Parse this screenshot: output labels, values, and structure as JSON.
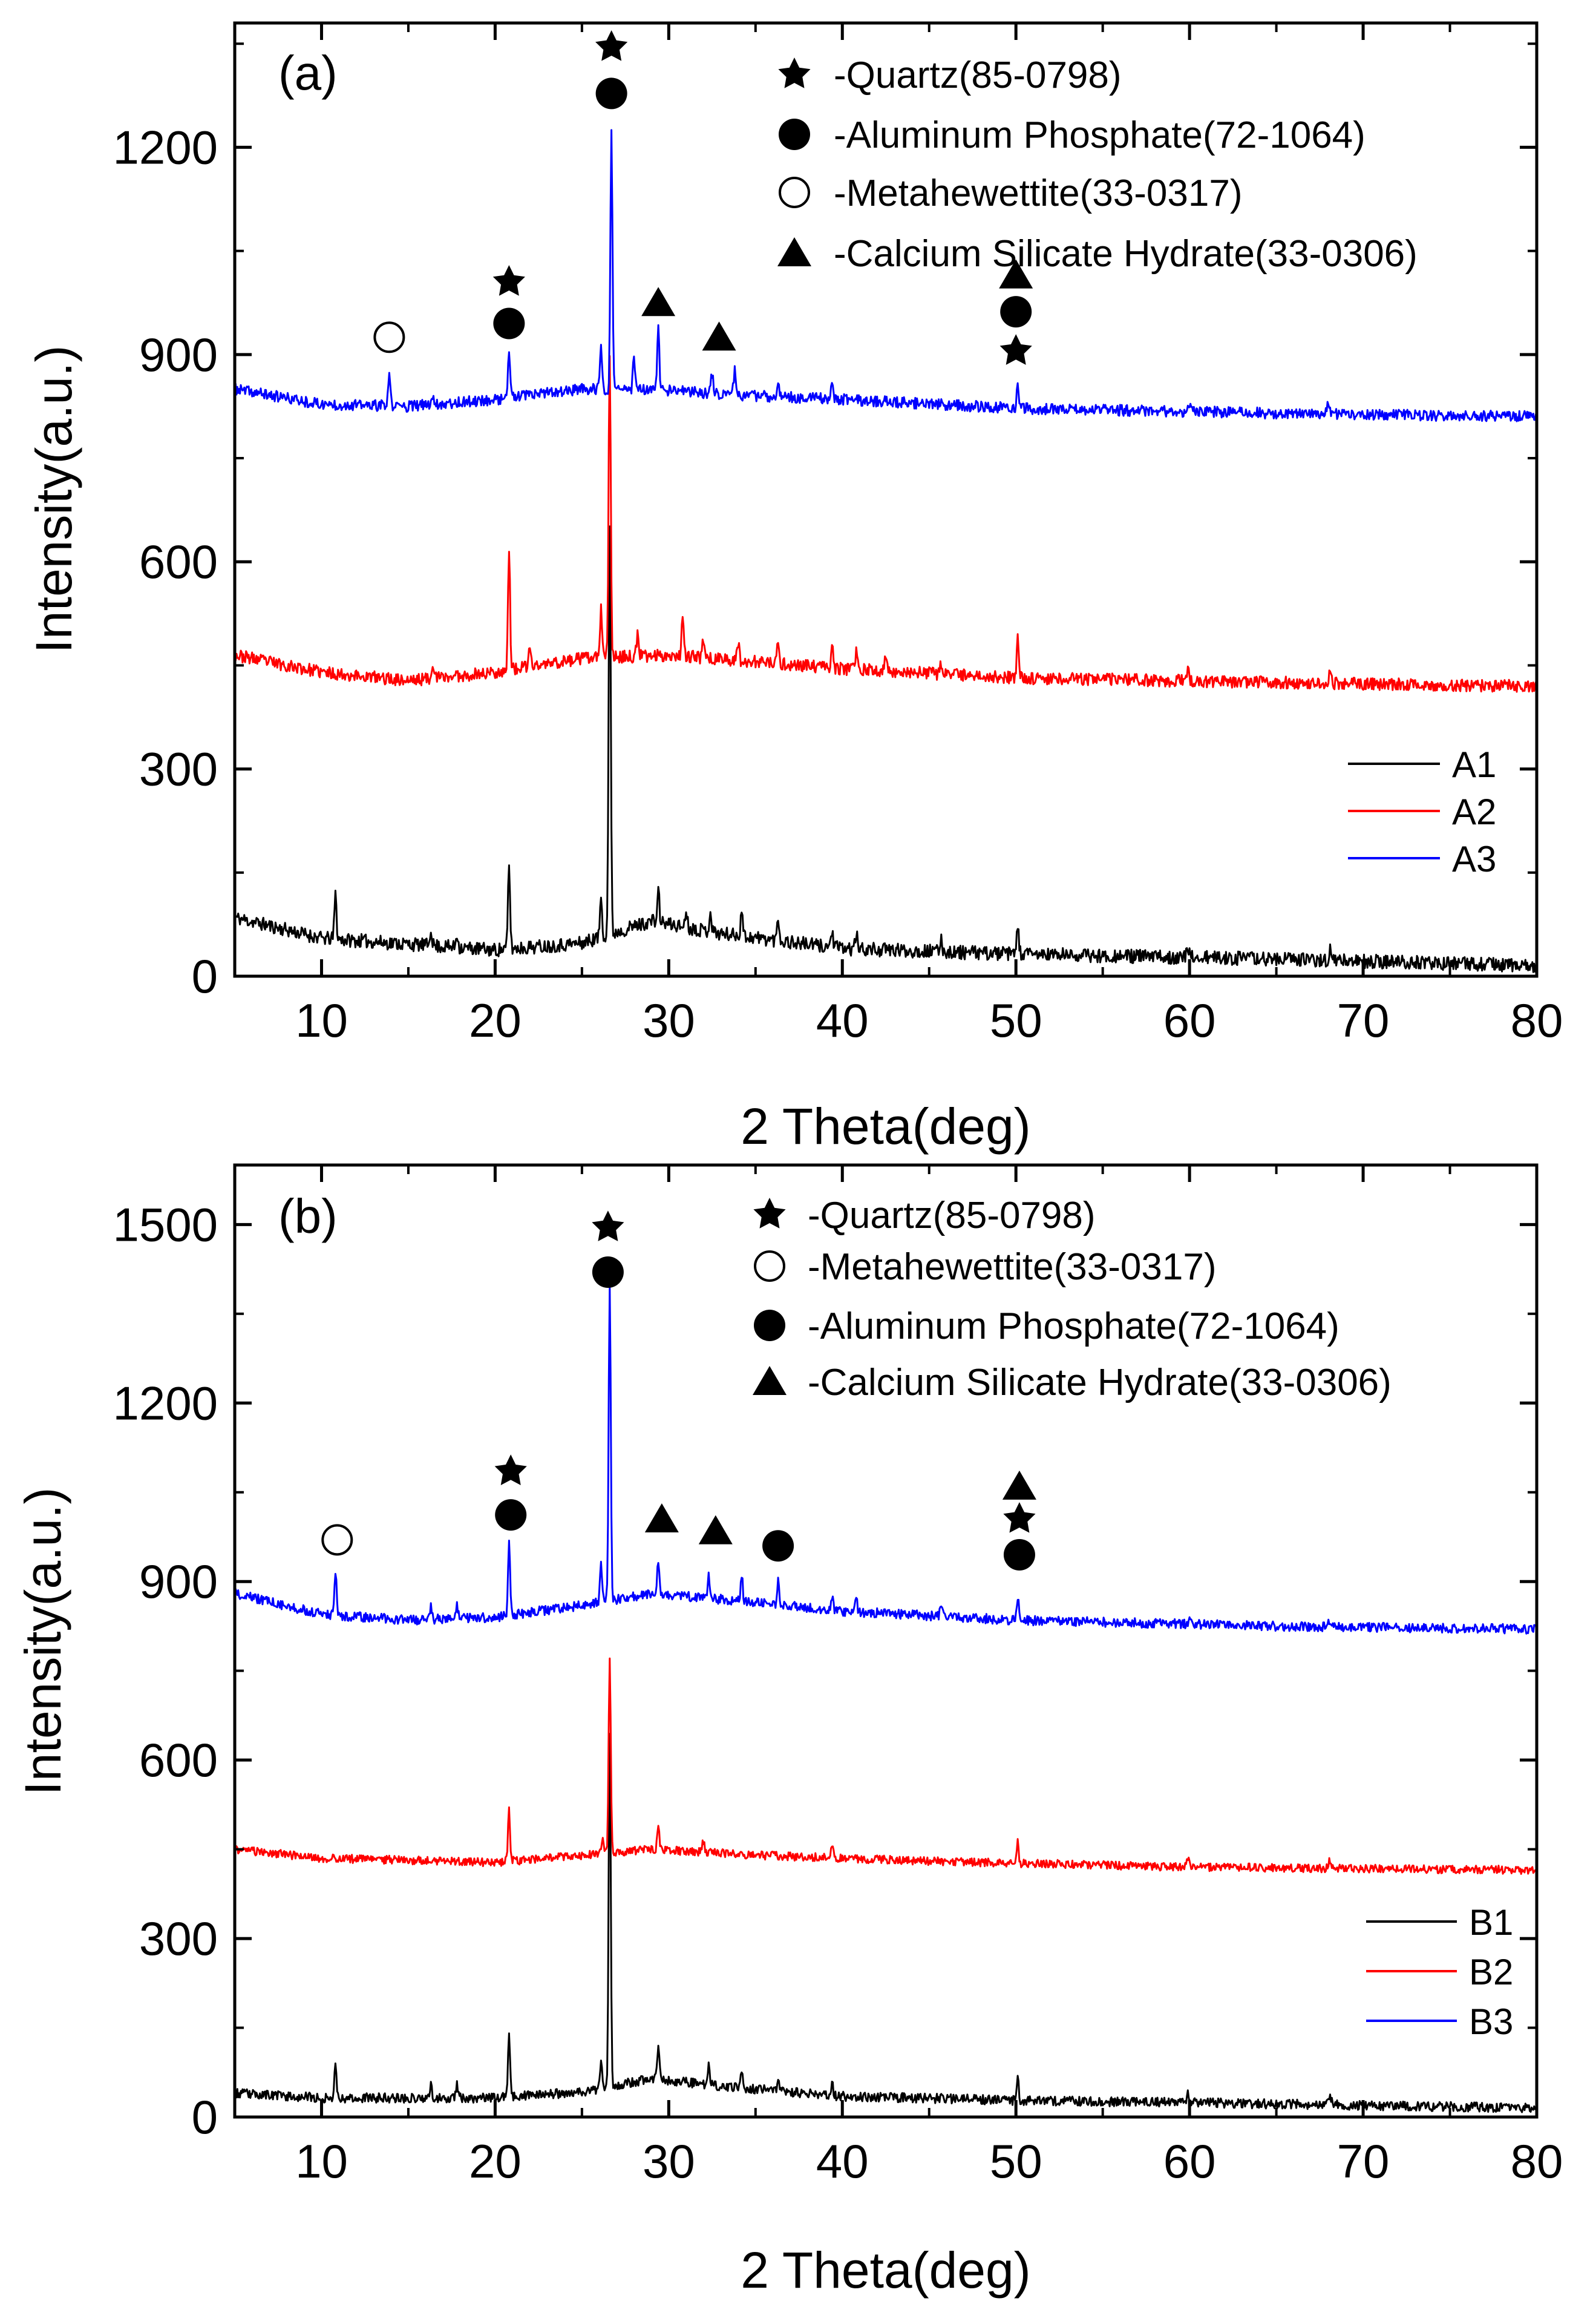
{
  "chart_data": [
    {
      "type": "line",
      "panel_label": "(a)",
      "xlabel": "2 Theta(deg)",
      "ylabel": "Intensity(a.u.)",
      "xlim": [
        5,
        80
      ],
      "ylim": [
        0,
        1380
      ],
      "xticks": [
        10,
        20,
        30,
        40,
        50,
        60,
        70,
        80
      ],
      "yticks": [
        0,
        300,
        600,
        900,
        1200
      ],
      "x_tick_labels": [
        "10",
        "20",
        "30",
        "40",
        "50",
        "60",
        "70",
        "80"
      ],
      "y_tick_labels": [
        "0",
        "300",
        "600",
        "900",
        "1200"
      ],
      "grid": false,
      "series": [
        {
          "name": "A1",
          "color": "#000000",
          "seed": 11,
          "noise": 10,
          "baseline": [
            [
              5,
              85
            ],
            [
              10,
              55
            ],
            [
              20,
              38
            ],
            [
              25,
              48
            ],
            [
              29,
              80
            ],
            [
              33,
              62
            ],
            [
              40,
              40
            ],
            [
              50,
              32
            ],
            [
              65,
              25
            ],
            [
              80,
              15
            ]
          ],
          "peaks": [
            [
              10.8,
              65
            ],
            [
              16.3,
              25
            ],
            [
              17.8,
              20
            ],
            [
              20.8,
              120
            ],
            [
              26.1,
              60
            ],
            [
              26.6,
              590
            ],
            [
              29.4,
              45
            ],
            [
              31.0,
              25
            ],
            [
              32.4,
              30
            ],
            [
              34.2,
              40
            ],
            [
              36.3,
              35
            ],
            [
              39.4,
              25
            ],
            [
              40.8,
              22
            ],
            [
              45.7,
              18
            ],
            [
              50.1,
              42
            ],
            [
              59.9,
              15
            ],
            [
              68.1,
              18
            ]
          ]
        },
        {
          "name": "A2",
          "color": "#ff0000",
          "seed": 23,
          "noise": 9,
          "baseline": [
            [
              5,
              465
            ],
            [
              10,
              440
            ],
            [
              15,
              428
            ],
            [
              20,
              440
            ],
            [
              25,
              460
            ],
            [
              30,
              465
            ],
            [
              35,
              455
            ],
            [
              40,
              445
            ],
            [
              50,
              432
            ],
            [
              65,
              425
            ],
            [
              80,
              420
            ]
          ],
          "peaks": [
            [
              16.4,
              25
            ],
            [
              20.8,
              175
            ],
            [
              22.0,
              30
            ],
            [
              26.1,
              70
            ],
            [
              26.6,
              445
            ],
            [
              28.2,
              30
            ],
            [
              30.8,
              65
            ],
            [
              32.0,
              30
            ],
            [
              34.0,
              25
            ],
            [
              36.3,
              28
            ],
            [
              39.4,
              35
            ],
            [
              40.8,
              25
            ],
            [
              42.5,
              20
            ],
            [
              45.7,
              15
            ],
            [
              50.1,
              55
            ],
            [
              59.9,
              20
            ],
            [
              68.1,
              25
            ]
          ]
        },
        {
          "name": "A3",
          "color": "#0000ff",
          "seed": 37,
          "noise": 8,
          "baseline": [
            [
              5,
              850
            ],
            [
              10,
              828
            ],
            [
              15,
              825
            ],
            [
              20,
              835
            ],
            [
              25,
              850
            ],
            [
              30,
              848
            ],
            [
              35,
              840
            ],
            [
              40,
              835
            ],
            [
              50,
              822
            ],
            [
              65,
              815
            ],
            [
              80,
              810
            ]
          ],
          "peaks": [
            [
              13.9,
              45
            ],
            [
              16.4,
              15
            ],
            [
              20.8,
              70
            ],
            [
              26.1,
              60
            ],
            [
              26.7,
              370
            ],
            [
              28.0,
              50
            ],
            [
              29.4,
              90
            ],
            [
              32.5,
              30
            ],
            [
              33.8,
              35
            ],
            [
              36.3,
              25
            ],
            [
              39.4,
              25
            ],
            [
              50.1,
              35
            ],
            [
              60.0,
              12
            ],
            [
              68.0,
              15
            ]
          ]
        }
      ],
      "legend": [
        "A1",
        "A2",
        "A3"
      ],
      "phase_legend": [
        {
          "symbol": "filled-star",
          "text": "-Quartz(85-0798)"
        },
        {
          "symbol": "filled-circle",
          "text": "-Aluminum Phosphate(72-1064)"
        },
        {
          "symbol": "open-circle",
          "text": "-Metahewettite(33-0317)"
        },
        {
          "symbol": "filled-triangle",
          "text": "-Calcium Silicate Hydrate(33-0306)"
        }
      ],
      "peak_markers": [
        {
          "symbol": "open-circle",
          "x": 13.9,
          "y": 925
        },
        {
          "symbol": "filled-star",
          "x": 20.8,
          "y": 1005
        },
        {
          "symbol": "filled-circle",
          "x": 20.8,
          "y": 945
        },
        {
          "symbol": "filled-star",
          "x": 26.7,
          "y": 1345
        },
        {
          "symbol": "filled-circle",
          "x": 26.7,
          "y": 1278
        },
        {
          "symbol": "filled-triangle",
          "x": 29.4,
          "y": 975
        },
        {
          "symbol": "filled-triangle",
          "x": 32.9,
          "y": 925
        },
        {
          "symbol": "filled-triangle",
          "x": 50.0,
          "y": 1015
        },
        {
          "symbol": "filled-circle",
          "x": 50.0,
          "y": 962
        },
        {
          "symbol": "filled-star",
          "x": 50.0,
          "y": 905
        }
      ]
    },
    {
      "type": "line",
      "panel_label": "(b)",
      "xlabel": "2 Theta(deg)",
      "ylabel": "Intensity(a.u.)",
      "xlim": [
        5,
        80
      ],
      "ylim": [
        0,
        1600
      ],
      "xticks": [
        10,
        20,
        30,
        40,
        50,
        60,
        70,
        80
      ],
      "yticks": [
        0,
        300,
        600,
        900,
        1200,
        1500
      ],
      "x_tick_labels": [
        "10",
        "20",
        "30",
        "40",
        "50",
        "60",
        "70",
        "80"
      ],
      "y_tick_labels": [
        "0",
        "300",
        "600",
        "900",
        "1200",
        "1500"
      ],
      "grid": false,
      "series": [
        {
          "name": "B1",
          "color": "#000000",
          "seed": 53,
          "noise": 8,
          "baseline": [
            [
              5,
              40
            ],
            [
              10,
              32
            ],
            [
              20,
              32
            ],
            [
              25,
              42
            ],
            [
              29,
              65
            ],
            [
              33,
              52
            ],
            [
              40,
              35
            ],
            [
              50,
              28
            ],
            [
              65,
              22
            ],
            [
              80,
              15
            ]
          ],
          "peaks": [
            [
              10.8,
              60
            ],
            [
              16.3,
              20
            ],
            [
              17.8,
              22
            ],
            [
              20.8,
              110
            ],
            [
              26.1,
              40
            ],
            [
              26.6,
              590
            ],
            [
              29.4,
              50
            ],
            [
              32.3,
              35
            ],
            [
              34.2,
              25
            ],
            [
              36.3,
              20
            ],
            [
              39.4,
              20
            ],
            [
              50.1,
              35
            ],
            [
              59.9,
              15
            ],
            [
              68.1,
              15
            ]
          ]
        },
        {
          "name": "B2",
          "color": "#ff0000",
          "seed": 61,
          "noise": 7,
          "baseline": [
            [
              5,
              450
            ],
            [
              10,
              435
            ],
            [
              20,
              428
            ],
            [
              25,
              440
            ],
            [
              29,
              450
            ],
            [
              35,
              440
            ],
            [
              45,
              430
            ],
            [
              60,
              420
            ],
            [
              80,
              415
            ]
          ],
          "peaks": [
            [
              20.8,
              85
            ],
            [
              26.2,
              30
            ],
            [
              26.6,
              330
            ],
            [
              29.4,
              40
            ],
            [
              32.0,
              20
            ],
            [
              39.4,
              25
            ],
            [
              50.1,
              35
            ],
            [
              59.9,
              15
            ],
            [
              68.1,
              15
            ]
          ]
        },
        {
          "name": "B3",
          "color": "#0000ff",
          "seed": 79,
          "noise": 8,
          "baseline": [
            [
              5,
              880
            ],
            [
              10,
              845
            ],
            [
              15,
              835
            ],
            [
              20,
              840
            ],
            [
              25,
              860
            ],
            [
              29,
              880
            ],
            [
              33,
              870
            ],
            [
              40,
              850
            ],
            [
              50,
              835
            ],
            [
              65,
              825
            ],
            [
              80,
              820
            ]
          ],
          "peaks": [
            [
              10.8,
              75
            ],
            [
              16.3,
              20
            ],
            [
              17.8,
              25
            ],
            [
              20.8,
              120
            ],
            [
              26.1,
              60
            ],
            [
              26.6,
              530
            ],
            [
              29.4,
              55
            ],
            [
              32.3,
              40
            ],
            [
              34.2,
              45
            ],
            [
              36.3,
              40
            ],
            [
              39.4,
              25
            ],
            [
              40.8,
              20
            ],
            [
              45.7,
              20
            ],
            [
              50.1,
              40
            ],
            [
              60.0,
              15
            ],
            [
              68.0,
              15
            ]
          ]
        }
      ],
      "legend": [
        "B1",
        "B2",
        "B3"
      ],
      "phase_legend": [
        {
          "symbol": "filled-star",
          "text": "-Quartz(85-0798)"
        },
        {
          "symbol": "open-circle",
          "text": "-Metahewettite(33-0317)"
        },
        {
          "symbol": "filled-circle",
          "text": "-Aluminum Phosphate(72-1064)"
        },
        {
          "symbol": "filled-triangle",
          "text": "-Calcium Silicate Hydrate(33-0306)"
        }
      ],
      "peak_markers": [
        {
          "symbol": "open-circle",
          "x": 10.9,
          "y": 970
        },
        {
          "symbol": "filled-star",
          "x": 20.9,
          "y": 1085
        },
        {
          "symbol": "filled-circle",
          "x": 20.9,
          "y": 1012
        },
        {
          "symbol": "filled-star",
          "x": 26.5,
          "y": 1495
        },
        {
          "symbol": "filled-circle",
          "x": 26.5,
          "y": 1420
        },
        {
          "symbol": "filled-triangle",
          "x": 29.6,
          "y": 1005
        },
        {
          "symbol": "filled-triangle",
          "x": 32.7,
          "y": 985
        },
        {
          "symbol": "filled-circle",
          "x": 36.3,
          "y": 960
        },
        {
          "symbol": "filled-triangle",
          "x": 50.2,
          "y": 1060
        },
        {
          "symbol": "filled-star",
          "x": 50.2,
          "y": 1005
        },
        {
          "symbol": "filled-circle",
          "x": 50.2,
          "y": 945
        }
      ]
    }
  ]
}
